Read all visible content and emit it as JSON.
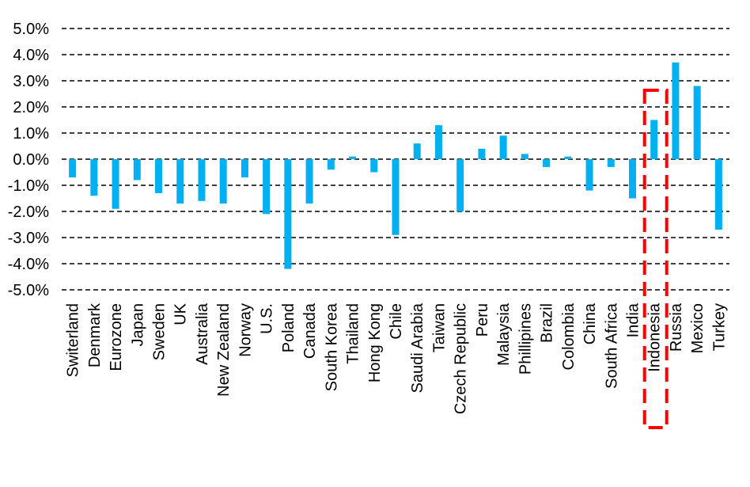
{
  "chart_data": {
    "type": "bar",
    "title": "",
    "xlabel": "",
    "ylabel": "",
    "ylim": [
      -5.0,
      5.0
    ],
    "y_ticks": [
      "5.0%",
      "4.0%",
      "3.0%",
      "2.0%",
      "1.0%",
      "0.0%",
      "-1.0%",
      "-2.0%",
      "-3.0%",
      "-4.0%",
      "-5.0%"
    ],
    "y_tick_values": [
      5,
      4,
      3,
      2,
      1,
      0,
      -1,
      -2,
      -3,
      -4,
      -5
    ],
    "grid": true,
    "bar_color": "#00b0f0",
    "categories": [
      "Switerland",
      "Denmark",
      "Eurozone",
      "Japan",
      "Sweden",
      "UK",
      "Australia",
      "New Zealand",
      "Norway",
      "U.S.",
      "Poland",
      "Canada",
      "South Korea",
      "Thailand",
      "Hong Kong",
      "Chile",
      "Saudi Arabia",
      "Taiwan",
      "Czech Republic",
      "Peru",
      "Malaysia",
      "Phillipines",
      "Brazil",
      "Colombia",
      "China",
      "South Africa",
      "India",
      "Indonesia",
      "Russia",
      "Mexico",
      "Turkey"
    ],
    "values": [
      -0.7,
      -1.4,
      -1.9,
      -0.8,
      -1.3,
      -1.7,
      -1.6,
      -1.7,
      -0.7,
      -2.1,
      -4.2,
      -1.7,
      -0.4,
      0.1,
      -0.5,
      -2.9,
      0.6,
      1.3,
      -2.0,
      0.4,
      0.9,
      0.2,
      -0.3,
      0.1,
      -1.2,
      -0.3,
      -1.5,
      1.5,
      3.7,
      2.8,
      -2.7
    ],
    "highlight": {
      "category": "Indonesia",
      "color": "#ff0000",
      "style": "dashed"
    }
  }
}
